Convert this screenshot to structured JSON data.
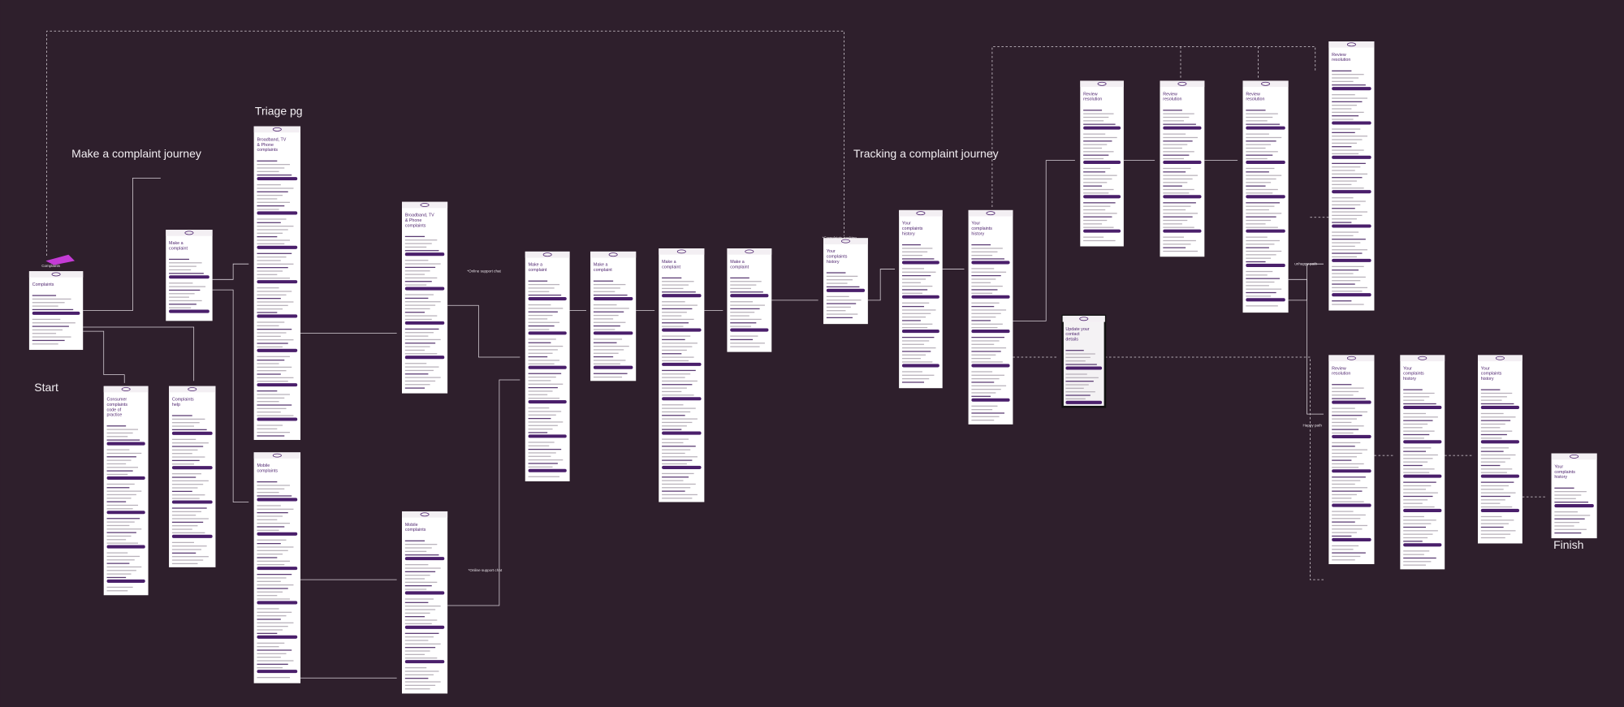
{
  "labels": {
    "make_journey": "Make a complaint journey",
    "triage": "Triage pg",
    "start": "Start",
    "tracking_journey": "Tracking a complaint journey",
    "finish": "Finish",
    "complaints_icon": "Complaints",
    "online_chat_1": "*Online support chat",
    "online_chat_2": "*Online support chat",
    "complaints_tracking": "*Complaints tracking",
    "unhappy": "unhappy path",
    "happy": "Happy path"
  },
  "screens": [
    {
      "title": "Complaints"
    },
    {
      "title": "Make a complaint"
    },
    {
      "title": "Consumer complaints code of practice"
    },
    {
      "title": "Complaints help"
    },
    {
      "title": "Broadband, TV & Phone complaints"
    },
    {
      "title": "Mobile complaints"
    },
    {
      "title": "Broadband, TV & Phone complaints"
    },
    {
      "title": "Mobile complaints"
    },
    {
      "title": "Make a complaint"
    },
    {
      "title": "Make a complaint"
    },
    {
      "title": "Make a complaint"
    },
    {
      "title": "Make a complaint"
    },
    {
      "title": "Your complaints history"
    },
    {
      "title": "Your complaints history"
    },
    {
      "title": "Your complaints history"
    },
    {
      "title": "Update your contact details"
    },
    {
      "title": "Review resolution"
    },
    {
      "title": "Review resolution"
    },
    {
      "title": "Review resolution"
    },
    {
      "title": "Review resolution"
    },
    {
      "title": "Review resolution"
    },
    {
      "title": "Your complaints history"
    },
    {
      "title": "Your complaints history"
    },
    {
      "title": "Your complaints history"
    }
  ]
}
